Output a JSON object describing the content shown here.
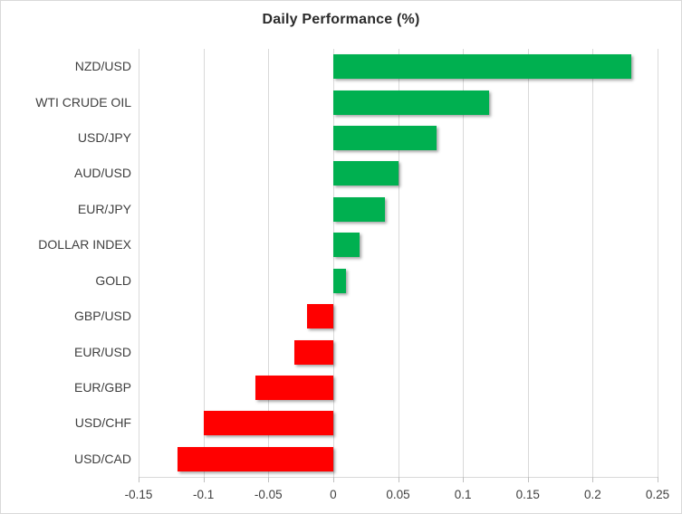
{
  "chart_data": {
    "type": "bar",
    "orientation": "horizontal",
    "title": "Daily Performance (%)",
    "categories": [
      "NZD/USD",
      "WTI CRUDE OIL",
      "USD/JPY",
      "AUD/USD",
      "EUR/JPY",
      "DOLLAR INDEX",
      "GOLD",
      "GBP/USD",
      "EUR/USD",
      "EUR/GBP",
      "USD/CHF",
      "USD/CAD"
    ],
    "values": [
      0.23,
      0.12,
      0.08,
      0.05,
      0.04,
      0.02,
      0.01,
      -0.02,
      -0.03,
      -0.06,
      -0.1,
      -0.12
    ],
    "xlabel": "",
    "ylabel": "",
    "xlim": [
      -0.15,
      0.25
    ],
    "xticks": [
      -0.15,
      -0.1,
      -0.05,
      0,
      0.05,
      0.1,
      0.15,
      0.2,
      0.25
    ],
    "xtick_labels": [
      "-0.15",
      "-0.1",
      "-0.05",
      "0",
      "0.05",
      "0.1",
      "0.15",
      "0.2",
      "0.25"
    ],
    "grid": true,
    "legend": false,
    "positive_color": "#00b050",
    "negative_color": "#ff0000",
    "gridline_color": "#d9d9d9",
    "tick_color": "#bfbfbf",
    "text_color": "#3f3f3f"
  }
}
